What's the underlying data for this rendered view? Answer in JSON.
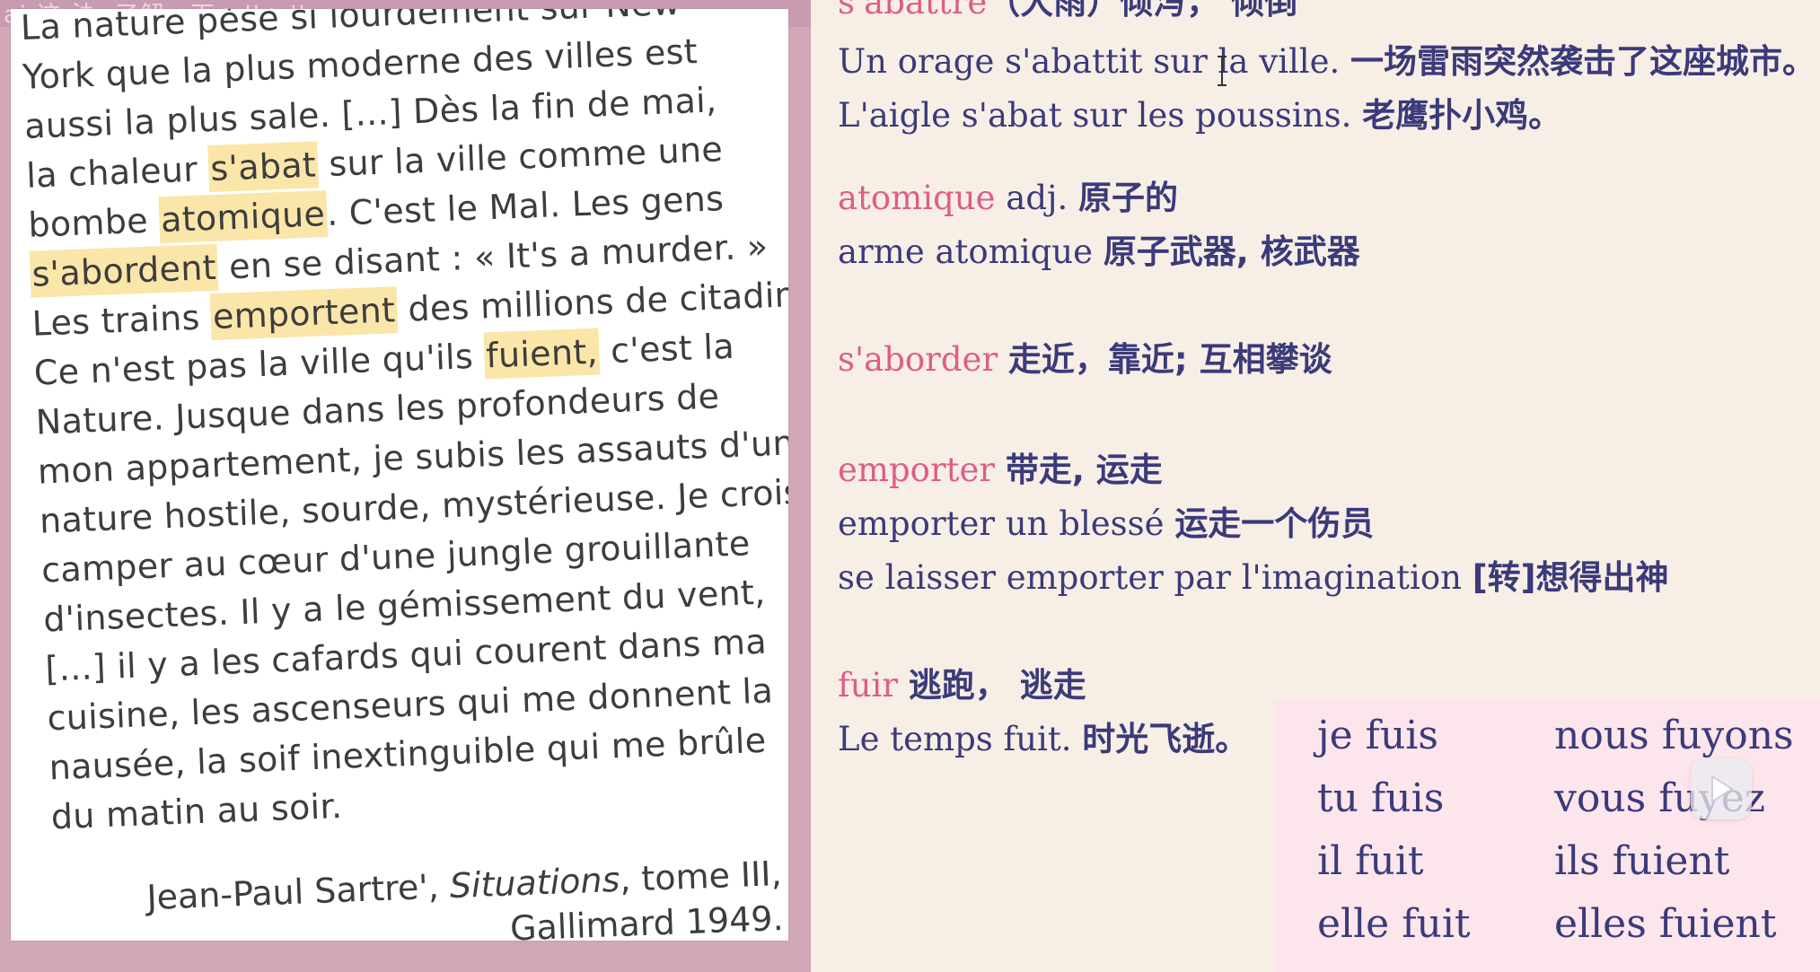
{
  "watermark": {
    "text": "ai 这 法 ·了解一下 ▶ll ▶ll"
  },
  "passage": {
    "lines": [
      [
        "La nature pèse si lourdement sur New"
      ],
      [
        "York que la plus moderne des villes est"
      ],
      [
        "aussi la plus sale. [...] Dès la fin de mai,"
      ],
      [
        "la chaleur ",
        {
          "hl": "s'abat"
        },
        " sur la ville comme une"
      ],
      [
        "bombe ",
        {
          "hl": "atomique"
        },
        ". C'est le Mal. Les gens"
      ],
      [
        {
          "hl": "s'abordent"
        },
        " en se disant : « It's a murder. »"
      ],
      [
        "Les trains ",
        {
          "hl": "emportent"
        },
        " des millions de citadins."
      ],
      [
        "Ce n'est pas la ville qu'ils ",
        {
          "hl": "fuient,"
        },
        " c'est la"
      ],
      [
        "Nature. Jusque dans les profondeurs de"
      ],
      [
        "mon appartement, je subis les assauts d'une"
      ],
      [
        "nature hostile, sourde, mystérieuse. Je crois"
      ],
      [
        "camper au cœur d'une jungle grouillante"
      ],
      [
        "d'insectes. Il y a le gémissement du vent,"
      ],
      [
        "[...] il y a les cafards qui courent dans ma"
      ],
      [
        "cuisine, les ascenseurs qui me donnent la"
      ],
      [
        "nausée, la soif inextinguible qui me brûle"
      ],
      [
        "du matin au soir."
      ]
    ],
    "credit_author": "Jean-Paul Sartre', ",
    "credit_title": "Situations",
    "credit_rest": ", tome III,",
    "credit_publisher": "Gallimard 1949."
  },
  "vocab": {
    "entries": [
      {
        "term": "s'abattre",
        "text": "",
        "cn": "（大雨）倾泻， 倾倒"
      },
      {
        "term": "",
        "text": "Un orage s'abattit sur la ville. ",
        "cn": "一场雷雨突然袭击了这座城市。"
      },
      {
        "term": "",
        "text": "L'aigle s'abat sur les poussins. ",
        "cn": "老鹰扑小鸡。"
      },
      {
        "term": "atomique",
        "text": " adj. ",
        "cn": "原子的"
      },
      {
        "term": "",
        "text": "arme atomique ",
        "cn": "原子武器, 核武器"
      },
      {
        "term": "s'aborder",
        "text": " ",
        "cn": "走近，靠近; 互相攀谈"
      },
      {
        "term": "emporter",
        "text": " ",
        "cn": "带走, 运走"
      },
      {
        "term": "",
        "text": "emporter un blessé ",
        "cn": "运走一个伤员"
      },
      {
        "term": "",
        "text": "se laisser emporter par l'imagination ",
        "cn": "[转]想得出神"
      },
      {
        "term": "fuir",
        "text": " ",
        "cn": "逃跑， 逃走"
      },
      {
        "term": "",
        "text": "Le temps fuit. ",
        "cn": "时光飞逝。"
      }
    ],
    "conjugation": {
      "singular": [
        "je fuis",
        "tu fuis",
        "il fuit",
        "elle fuit"
      ],
      "plural": [
        "nous fuyons",
        "vous fuyez",
        "ils fuient",
        "elles fuient"
      ]
    }
  },
  "colors": {
    "term": "#de5d89",
    "body_text": "#3b3a7a",
    "highlight": "#fbe6a9",
    "panel_bg": "#f7efe6",
    "conj_bg": "#fce6ec",
    "frame": "#d2a7b8"
  },
  "icons": {
    "cursor": "text-cursor-icon",
    "play": "play-icon"
  }
}
